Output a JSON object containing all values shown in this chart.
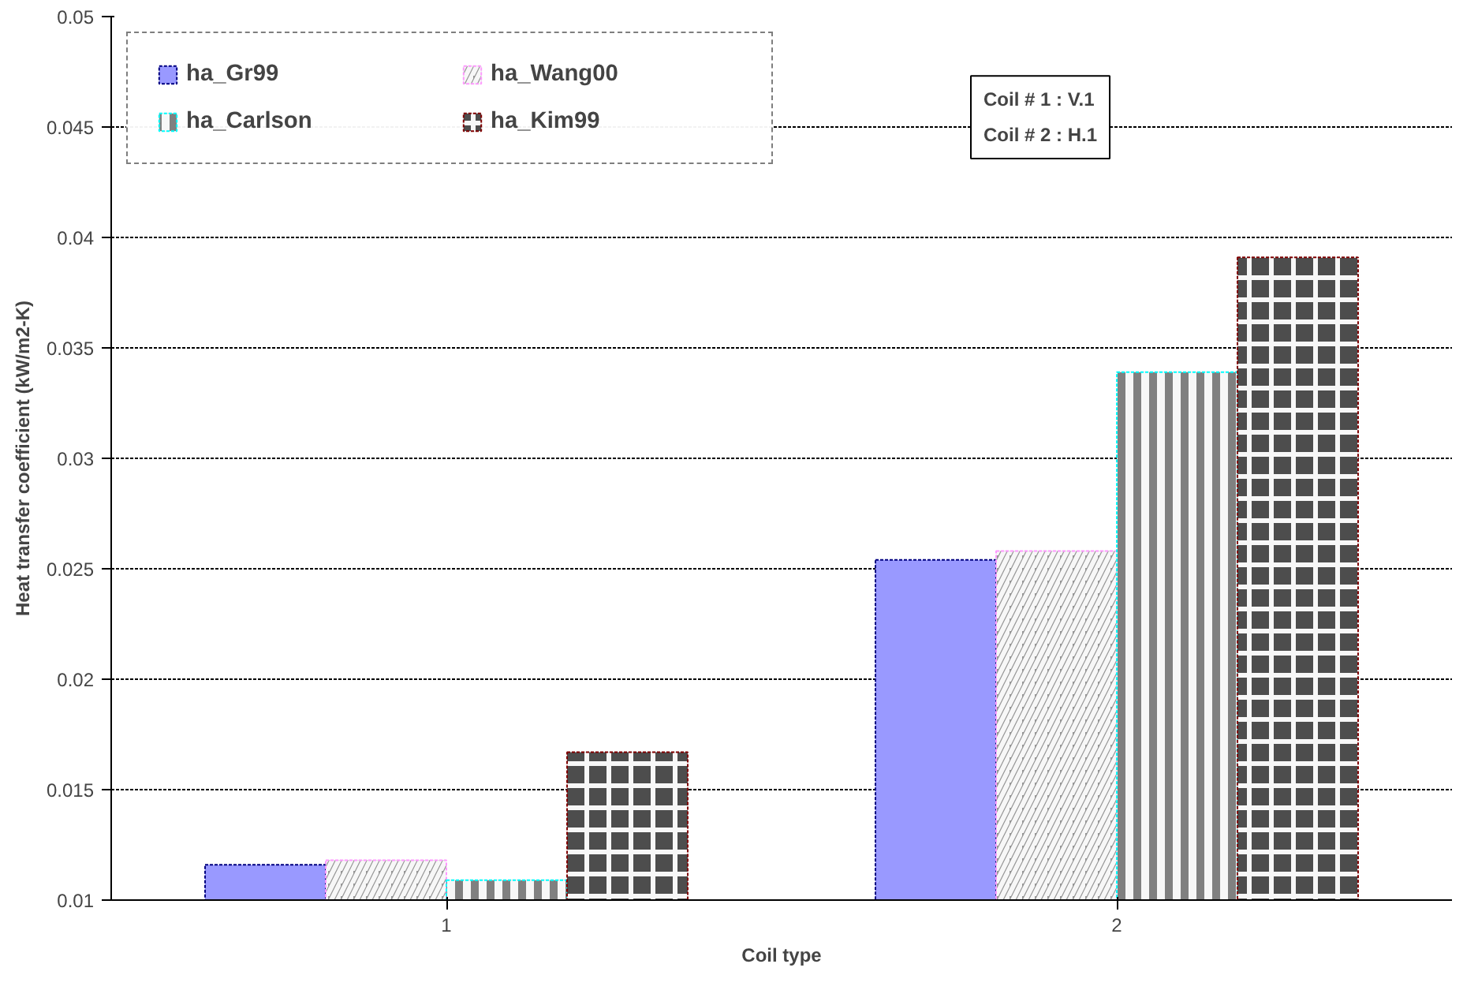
{
  "chart_data": {
    "type": "bar",
    "xlabel": "Coil type",
    "ylabel": "Heat transfer coefficient (kW/m2-K)",
    "categories": [
      "1",
      "2"
    ],
    "series": [
      {
        "name": "ha_Gr99",
        "color": "#9999ff",
        "values": [
          0.0116,
          0.0254
        ]
      },
      {
        "name": "ha_Wang00",
        "color": "#969696",
        "values": [
          0.0118,
          0.0258
        ]
      },
      {
        "name": "ha_Carlson",
        "color": "#808080",
        "values": [
          0.0109,
          0.0339
        ]
      },
      {
        "name": "ha_Kim99",
        "color": "#4d4d4d",
        "values": [
          0.0167,
          0.0391
        ]
      }
    ],
    "ylim": [
      0.01,
      0.05
    ],
    "yticks": [
      0.01,
      0.015,
      0.02,
      0.025,
      0.03,
      0.035,
      0.04,
      0.045,
      0.05
    ],
    "grid": "y",
    "legend": "top left",
    "annotations": [
      "Coil # 1 : V.1",
      "Coil # 2 : H.1"
    ]
  }
}
